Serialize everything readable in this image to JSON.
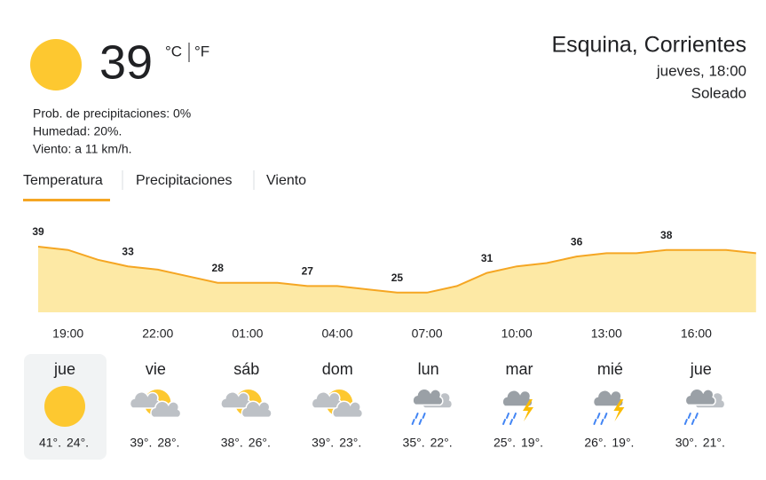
{
  "current": {
    "temperature": "39",
    "unit_c": "°C",
    "unit_f": "°F",
    "details": [
      "Prob. de precipitaciones: 0%",
      "Humedad: 20%.",
      "Viento: a 11 km/h."
    ],
    "location": "Esquina, Corrientes",
    "time": "jueves, 18:00",
    "condition": "Soleado"
  },
  "tabs": [
    "Temperatura",
    "Precipitaciones",
    "Viento"
  ],
  "chart_data": {
    "type": "area",
    "color": "#f5a623",
    "fill": "#fde9a5",
    "categories": [
      null,
      "19:00",
      null,
      null,
      "22:00",
      null,
      null,
      "01:00",
      null,
      null,
      "04:00",
      null,
      null,
      "07:00",
      null,
      null,
      "10:00",
      null,
      null,
      "13:00",
      null,
      null,
      "16:00",
      null,
      null
    ],
    "values": [
      39,
      38,
      35,
      33,
      32,
      30,
      28,
      28,
      28,
      27,
      27,
      26,
      25,
      25,
      27,
      31,
      33,
      34,
      36,
      37,
      37,
      38,
      38,
      38,
      37
    ],
    "value_labels": [
      "39",
      null,
      null,
      "33",
      null,
      null,
      "28",
      null,
      null,
      "27",
      null,
      null,
      "25",
      null,
      null,
      "31",
      null,
      null,
      "36",
      null,
      null,
      "38",
      null,
      null,
      null
    ],
    "ylim": [
      19,
      49
    ]
  },
  "forecast": [
    {
      "day": "jue",
      "high": "41°.",
      "low": "24°.",
      "icon": "sunny",
      "selected": true
    },
    {
      "day": "vie",
      "high": "39°.",
      "low": "28°.",
      "icon": "partly-cloudy"
    },
    {
      "day": "sáb",
      "high": "38°.",
      "low": "26°.",
      "icon": "partly-cloudy"
    },
    {
      "day": "dom",
      "high": "39°.",
      "low": "23°.",
      "icon": "partly-cloudy"
    },
    {
      "day": "lun",
      "high": "35°.",
      "low": "22°.",
      "icon": "rain"
    },
    {
      "day": "mar",
      "high": "25°.",
      "low": "19°.",
      "icon": "storm"
    },
    {
      "day": "mié",
      "high": "26°.",
      "low": "19°.",
      "icon": "storm"
    },
    {
      "day": "jue",
      "high": "30°.",
      "low": "21°.",
      "icon": "rain"
    }
  ]
}
